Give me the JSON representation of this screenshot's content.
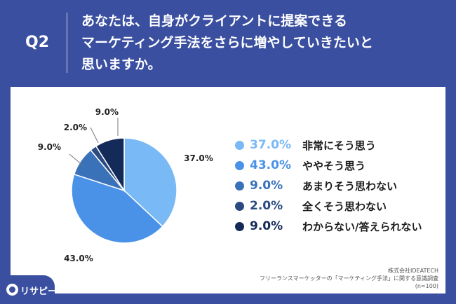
{
  "question": {
    "label": "Q2",
    "lines": [
      "あなたは、自身がクライアントに提案できる",
      "マーケティング手法をさらに増やしていきたいと",
      "思いますか。"
    ]
  },
  "colors": {
    "background": "#3a4fa0",
    "card": "#ffffff"
  },
  "chart_data": {
    "type": "pie",
    "categories": [
      "非常にそう思う",
      "ややそう思う",
      "あまりそう思わない",
      "全くそう思わない",
      "わからない/答えられない"
    ],
    "values": [
      37.0,
      43.0,
      9.0,
      2.0,
      9.0
    ],
    "value_labels": [
      "37.0%",
      "43.0%",
      "9.0%",
      "2.0%",
      "9.0%"
    ],
    "percent_labels": [
      "37.0%",
      "43.0%",
      "9.0%",
      "2.0%",
      "9.0%"
    ],
    "colors": [
      "#79b9f5",
      "#4a92e8",
      "#3a72ba",
      "#2a4a80",
      "#142a58"
    ],
    "start_angle_deg": 0,
    "direction": "clockwise",
    "legend_position": "right"
  },
  "source": {
    "lines": [
      "株式会社IDEATECH",
      "フリーランスマーケッターの「マーケティング手法」に関する意識調査",
      "(n=100)"
    ]
  },
  "logo": {
    "text": "リサピー",
    "icon": "search-magnifier-icon"
  }
}
